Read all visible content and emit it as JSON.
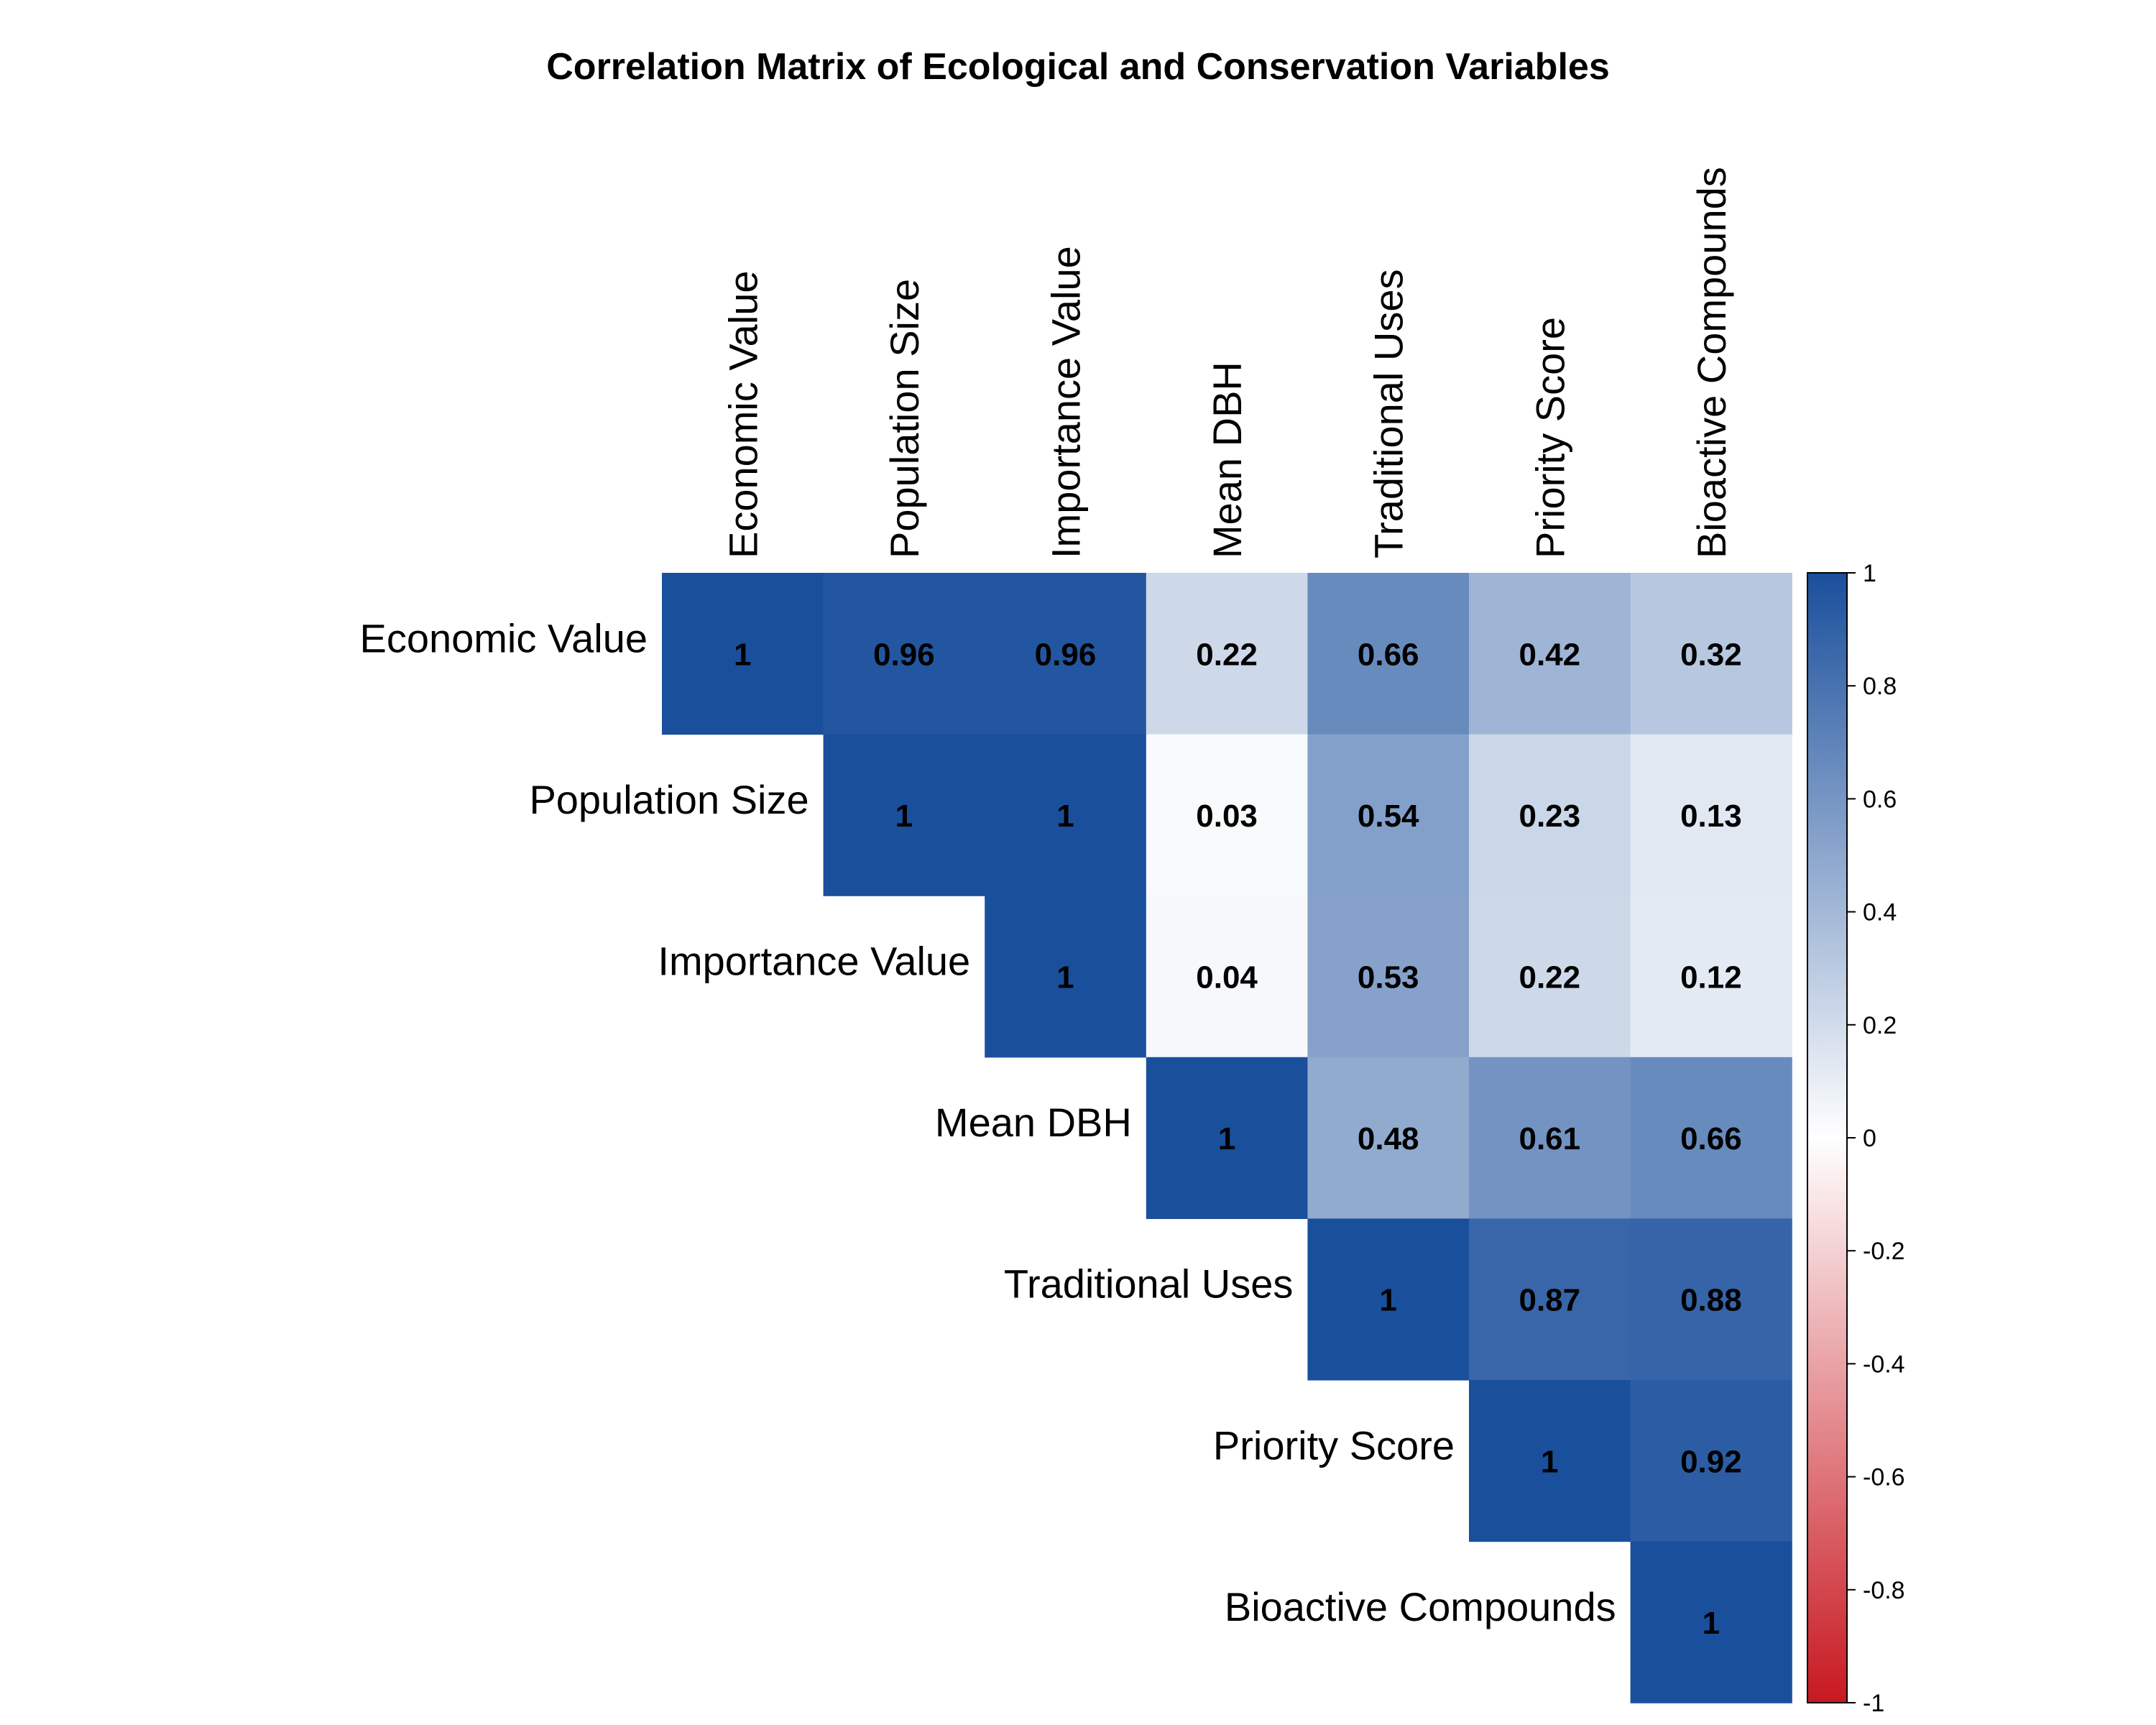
{
  "chart_data": {
    "type": "heatmap",
    "title": "Correlation Matrix of Ecological and Conservation Variables",
    "variables": [
      "Economic Value",
      "Population Size",
      "Importance Value",
      "Mean DBH",
      "Traditional Uses",
      "Priority Score",
      "Bioactive Compounds"
    ],
    "matrix": [
      [
        1,
        0.96,
        0.96,
        0.22,
        0.66,
        0.42,
        0.32
      ],
      [
        null,
        1,
        1,
        0.03,
        0.54,
        0.23,
        0.13
      ],
      [
        null,
        null,
        1,
        0.04,
        0.53,
        0.22,
        0.12
      ],
      [
        null,
        null,
        null,
        1,
        0.48,
        0.61,
        0.66
      ],
      [
        null,
        null,
        null,
        null,
        1,
        0.87,
        0.88
      ],
      [
        null,
        null,
        null,
        null,
        null,
        1,
        0.92
      ],
      [
        null,
        null,
        null,
        null,
        null,
        null,
        1
      ]
    ],
    "labels": [
      [
        "1",
        "0.96",
        "0.96",
        "0.22",
        "0.66",
        "0.42",
        "0.32"
      ],
      [
        null,
        "1",
        "1",
        "0.03",
        "0.54",
        "0.23",
        "0.13"
      ],
      [
        null,
        null,
        "1",
        "0.04",
        "0.53",
        "0.22",
        "0.12"
      ],
      [
        null,
        null,
        null,
        "1",
        "0.48",
        "0.61",
        "0.66"
      ],
      [
        null,
        null,
        null,
        null,
        "1",
        "0.87",
        "0.88"
      ],
      [
        null,
        null,
        null,
        null,
        null,
        "1",
        "0.92"
      ],
      [
        null,
        null,
        null,
        null,
        null,
        null,
        "1"
      ]
    ],
    "layout": "upper-triangle",
    "colorbar": {
      "range": [
        -1,
        1
      ],
      "ticks": [
        1,
        0.8,
        0.6,
        0.4,
        0.2,
        0,
        -0.2,
        -0.4,
        -0.6,
        -0.8,
        -1
      ],
      "tick_labels": [
        "1",
        "0.8",
        "0.6",
        "0.4",
        "0.2",
        "0",
        "-0.2",
        "-0.4",
        "-0.6",
        "-0.8",
        "-1"
      ],
      "colors": {
        "negative": "#c81820",
        "neutral": "#ffffff",
        "positive": "#1a4f9c"
      }
    }
  }
}
